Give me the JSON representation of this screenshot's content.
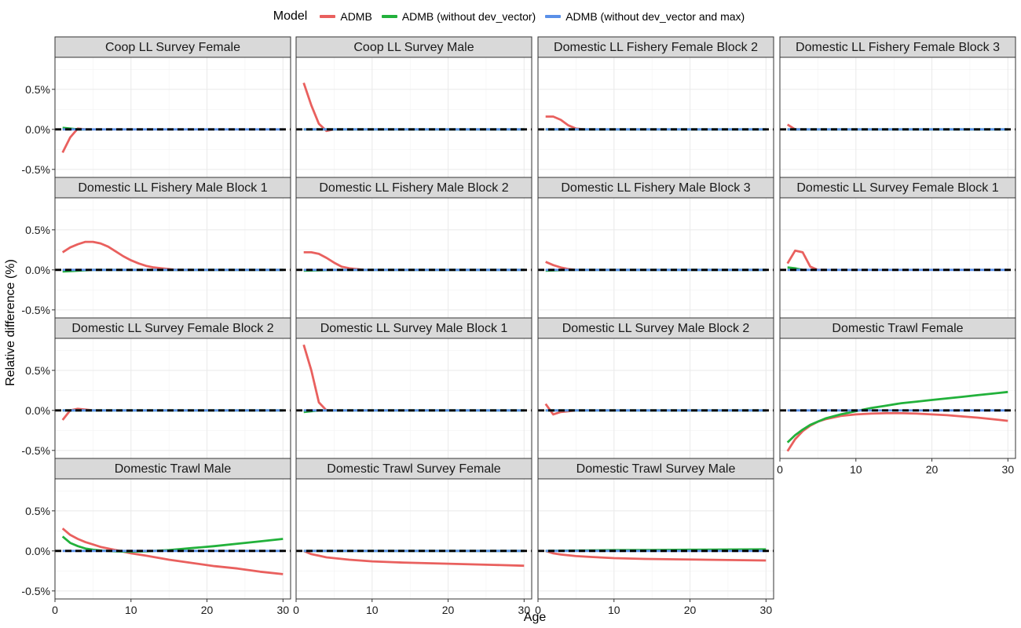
{
  "legend": {
    "title": "Model",
    "items": [
      {
        "label": "ADMB",
        "color": "#E9605E"
      },
      {
        "label": "ADMB (without dev_vector)",
        "color": "#22B13B"
      },
      {
        "label": "ADMB (without dev_vector and max)",
        "color": "#5A90E8"
      }
    ]
  },
  "chart_data": {
    "type": "line",
    "title": "",
    "xlabel": "Age",
    "ylabel": "Relative difference (%)",
    "xlim": [
      0,
      31
    ],
    "ylim": [
      -0.6,
      0.9
    ],
    "x_ticks": [
      0,
      10,
      20,
      30
    ],
    "y_ticks": [
      -0.5,
      0.0,
      0.5
    ],
    "y_tick_labels": [
      "-0.5%",
      "0.0%",
      "0.5%"
    ],
    "reference_line": {
      "y": 0,
      "style": "dashed",
      "color": "#000000"
    },
    "grid": true,
    "legend_position": "top",
    "facet_layout": {
      "rows": 4,
      "cols": 4
    },
    "panels": [
      {
        "title": "Coop LL Survey Female",
        "series": [
          {
            "name": "ADMB",
            "x": [
              1,
              2,
              3,
              4
            ],
            "y": [
              -0.29,
              -0.1,
              0.01,
              0.0
            ]
          },
          {
            "name": "ADMB (without dev_vector)",
            "x": [
              1,
              2,
              3,
              4
            ],
            "y": [
              0.02,
              0.01,
              0.0,
              0.0
            ]
          },
          {
            "name": "ADMB (without dev_vector and max)",
            "x": [
              1,
              30
            ],
            "y": [
              0.0,
              0.0
            ]
          }
        ]
      },
      {
        "title": "Coop LL Survey Male",
        "series": [
          {
            "name": "ADMB",
            "x": [
              1,
              2,
              3,
              4,
              5
            ],
            "y": [
              0.58,
              0.3,
              0.07,
              -0.02,
              0.0
            ]
          },
          {
            "name": "ADMB (without dev_vector)",
            "x": [
              1,
              30
            ],
            "y": [
              0.0,
              0.0
            ]
          },
          {
            "name": "ADMB (without dev_vector and max)",
            "x": [
              1,
              30
            ],
            "y": [
              0.0,
              0.0
            ]
          }
        ]
      },
      {
        "title": "Domestic LL Fishery Female Block 2",
        "series": [
          {
            "name": "ADMB",
            "x": [
              1,
              2,
              3,
              4,
              5,
              6
            ],
            "y": [
              0.16,
              0.16,
              0.12,
              0.05,
              0.01,
              0.0
            ]
          },
          {
            "name": "ADMB (without dev_vector)",
            "x": [
              1,
              30
            ],
            "y": [
              0.0,
              0.0
            ]
          },
          {
            "name": "ADMB (without dev_vector and max)",
            "x": [
              1,
              30
            ],
            "y": [
              0.0,
              0.0
            ]
          }
        ]
      },
      {
        "title": "Domestic LL Fishery Female Block 3",
        "series": [
          {
            "name": "ADMB",
            "x": [
              1,
              2,
              3
            ],
            "y": [
              0.06,
              0.0,
              0.0
            ]
          },
          {
            "name": "ADMB (without dev_vector)",
            "x": [
              1,
              30
            ],
            "y": [
              0.0,
              0.0
            ]
          },
          {
            "name": "ADMB (without dev_vector and max)",
            "x": [
              1,
              30
            ],
            "y": [
              0.0,
              0.0
            ]
          }
        ]
      },
      {
        "title": "Domestic LL Fishery Male Block 1",
        "series": [
          {
            "name": "ADMB",
            "x": [
              1,
              2,
              3,
              4,
              5,
              6,
              7,
              8,
              9,
              10,
              11,
              12,
              13,
              14,
              15,
              16,
              17,
              18
            ],
            "y": [
              0.22,
              0.28,
              0.32,
              0.35,
              0.35,
              0.33,
              0.29,
              0.23,
              0.17,
              0.12,
              0.08,
              0.05,
              0.03,
              0.02,
              0.01,
              0.0,
              0.0,
              0.0
            ]
          },
          {
            "name": "ADMB (without dev_vector)",
            "x": [
              1,
              5,
              30
            ],
            "y": [
              -0.02,
              0.0,
              0.0
            ]
          },
          {
            "name": "ADMB (without dev_vector and max)",
            "x": [
              1,
              30
            ],
            "y": [
              0.0,
              0.0
            ]
          }
        ]
      },
      {
        "title": "Domestic LL Fishery Male Block 2",
        "series": [
          {
            "name": "ADMB",
            "x": [
              1,
              2,
              3,
              4,
              5,
              6,
              7,
              8,
              9
            ],
            "y": [
              0.22,
              0.22,
              0.2,
              0.15,
              0.09,
              0.04,
              0.02,
              0.01,
              0.0
            ]
          },
          {
            "name": "ADMB (without dev_vector)",
            "x": [
              1,
              5,
              30
            ],
            "y": [
              -0.01,
              0.0,
              0.0
            ]
          },
          {
            "name": "ADMB (without dev_vector and max)",
            "x": [
              1,
              30
            ],
            "y": [
              0.0,
              0.0
            ]
          }
        ]
      },
      {
        "title": "Domestic LL Fishery Male Block 3",
        "series": [
          {
            "name": "ADMB",
            "x": [
              1,
              2,
              3,
              4,
              5
            ],
            "y": [
              0.1,
              0.06,
              0.03,
              0.01,
              0.0
            ]
          },
          {
            "name": "ADMB (without dev_vector)",
            "x": [
              1,
              4,
              30
            ],
            "y": [
              -0.01,
              0.0,
              0.0
            ]
          },
          {
            "name": "ADMB (without dev_vector and max)",
            "x": [
              1,
              30
            ],
            "y": [
              0.0,
              0.0
            ]
          }
        ]
      },
      {
        "title": "Domestic LL Survey Female Block 1",
        "series": [
          {
            "name": "ADMB",
            "x": [
              1,
              2,
              3,
              4,
              5,
              6
            ],
            "y": [
              0.08,
              0.24,
              0.22,
              0.04,
              0.0,
              0.0
            ]
          },
          {
            "name": "ADMB (without dev_vector)",
            "x": [
              1,
              2,
              3
            ],
            "y": [
              0.03,
              0.02,
              0.0
            ]
          },
          {
            "name": "ADMB (without dev_vector and max)",
            "x": [
              1,
              30
            ],
            "y": [
              0.0,
              0.0
            ]
          }
        ]
      },
      {
        "title": "Domestic LL Survey Female Block 2",
        "series": [
          {
            "name": "ADMB",
            "x": [
              1,
              2,
              3,
              4,
              5
            ],
            "y": [
              -0.12,
              0.0,
              0.02,
              0.01,
              0.0
            ]
          },
          {
            "name": "ADMB (without dev_vector)",
            "x": [
              1,
              2,
              30
            ],
            "y": [
              0.0,
              0.0,
              0.0
            ]
          },
          {
            "name": "ADMB (without dev_vector and max)",
            "x": [
              1,
              30
            ],
            "y": [
              0.0,
              0.0
            ]
          }
        ]
      },
      {
        "title": "Domestic LL Survey Male Block 1",
        "series": [
          {
            "name": "ADMB",
            "x": [
              1,
              2,
              3,
              4,
              5
            ],
            "y": [
              0.82,
              0.5,
              0.1,
              0.0,
              0.0
            ]
          },
          {
            "name": "ADMB (without dev_vector)",
            "x": [
              1,
              3,
              30
            ],
            "y": [
              -0.02,
              0.0,
              0.0
            ]
          },
          {
            "name": "ADMB (without dev_vector and max)",
            "x": [
              1,
              30
            ],
            "y": [
              0.0,
              0.0
            ]
          }
        ]
      },
      {
        "title": "Domestic LL Survey Male Block 2",
        "series": [
          {
            "name": "ADMB",
            "x": [
              1,
              2,
              3,
              4,
              5
            ],
            "y": [
              0.08,
              -0.05,
              -0.02,
              -0.01,
              0.0
            ]
          },
          {
            "name": "ADMB (without dev_vector)",
            "x": [
              1,
              30
            ],
            "y": [
              0.0,
              0.0
            ]
          },
          {
            "name": "ADMB (without dev_vector and max)",
            "x": [
              1,
              30
            ],
            "y": [
              0.0,
              0.0
            ]
          }
        ]
      },
      {
        "title": "Domestic Trawl Female",
        "series": [
          {
            "name": "ADMB",
            "x": [
              1,
              2,
              3,
              4,
              5,
              6,
              8,
              10,
              12,
              14,
              16,
              18,
              20,
              22,
              24,
              26,
              28,
              30
            ],
            "y": [
              -0.51,
              -0.36,
              -0.26,
              -0.19,
              -0.14,
              -0.11,
              -0.07,
              -0.05,
              -0.04,
              -0.035,
              -0.035,
              -0.04,
              -0.05,
              -0.06,
              -0.075,
              -0.09,
              -0.11,
              -0.13
            ]
          },
          {
            "name": "ADMB (without dev_vector)",
            "x": [
              1,
              2,
              3,
              4,
              5,
              6,
              8,
              10,
              12,
              14,
              16,
              18,
              20,
              22,
              24,
              26,
              28,
              30
            ],
            "y": [
              -0.4,
              -0.31,
              -0.24,
              -0.18,
              -0.14,
              -0.1,
              -0.05,
              -0.01,
              0.03,
              0.06,
              0.09,
              0.11,
              0.13,
              0.15,
              0.17,
              0.19,
              0.21,
              0.23
            ]
          },
          {
            "name": "ADMB (without dev_vector and max)",
            "x": [
              1,
              30
            ],
            "y": [
              0.0,
              0.0
            ]
          }
        ]
      },
      {
        "title": "Domestic Trawl Male",
        "series": [
          {
            "name": "ADMB",
            "x": [
              1,
              2,
              3,
              4,
              5,
              6,
              8,
              10,
              12,
              15,
              18,
              21,
              24,
              27,
              30
            ],
            "y": [
              0.28,
              0.2,
              0.15,
              0.11,
              0.08,
              0.05,
              0.01,
              -0.03,
              -0.06,
              -0.11,
              -0.15,
              -0.19,
              -0.22,
              -0.26,
              -0.29
            ]
          },
          {
            "name": "ADMB (without dev_vector)",
            "x": [
              1,
              2,
              3,
              4,
              5,
              6,
              8,
              10,
              12,
              15,
              18,
              21,
              24,
              27,
              30
            ],
            "y": [
              0.18,
              0.1,
              0.06,
              0.03,
              0.015,
              0.005,
              -0.005,
              -0.01,
              -0.005,
              0.01,
              0.035,
              0.06,
              0.09,
              0.12,
              0.15
            ]
          },
          {
            "name": "ADMB (without dev_vector and max)",
            "x": [
              1,
              30
            ],
            "y": [
              0.0,
              0.0
            ]
          }
        ]
      },
      {
        "title": "Domestic Trawl Survey Female",
        "series": [
          {
            "name": "ADMB",
            "x": [
              1,
              2,
              3,
              4,
              5,
              7,
              10,
              14,
              18,
              22,
              26,
              30
            ],
            "y": [
              0.0,
              -0.04,
              -0.06,
              -0.08,
              -0.09,
              -0.11,
              -0.13,
              -0.145,
              -0.155,
              -0.165,
              -0.175,
              -0.185
            ]
          },
          {
            "name": "ADMB (without dev_vector)",
            "x": [
              1,
              30
            ],
            "y": [
              0.0,
              0.0
            ]
          },
          {
            "name": "ADMB (without dev_vector and max)",
            "x": [
              1,
              30
            ],
            "y": [
              0.0,
              0.0
            ]
          }
        ]
      },
      {
        "title": "Domestic Trawl Survey Male",
        "series": [
          {
            "name": "ADMB",
            "x": [
              1,
              2,
              3,
              4,
              5,
              7,
              10,
              14,
              18,
              22,
              26,
              30
            ],
            "y": [
              0.0,
              -0.03,
              -0.045,
              -0.055,
              -0.065,
              -0.075,
              -0.09,
              -0.1,
              -0.105,
              -0.11,
              -0.115,
              -0.12
            ]
          },
          {
            "name": "ADMB (without dev_vector)",
            "x": [
              1,
              5,
              10,
              15,
              20,
              25,
              30
            ],
            "y": [
              0.0,
              0.005,
              0.01,
              0.012,
              0.015,
              0.018,
              0.02
            ]
          },
          {
            "name": "ADMB (without dev_vector and max)",
            "x": [
              1,
              30
            ],
            "y": [
              0.0,
              0.0
            ]
          }
        ]
      }
    ]
  }
}
